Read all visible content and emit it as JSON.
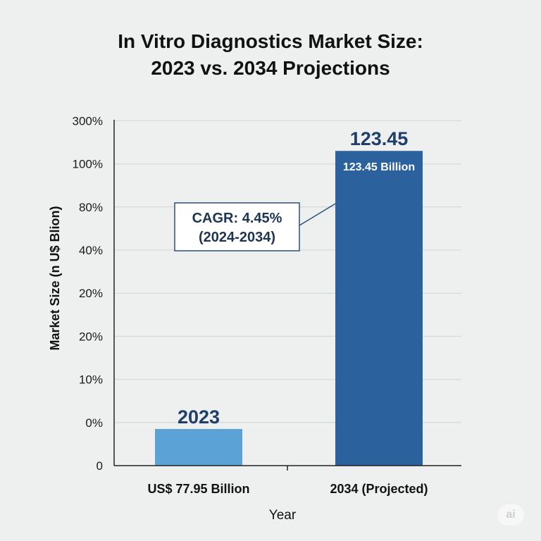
{
  "chart_data": {
    "type": "bar",
    "title_lines": [
      "In Vitro Diagnostics Market Size:",
      "2023 vs. 2034 Projections"
    ],
    "xlabel": "Year",
    "ylabel": "Market Size (n U$ Blion)",
    "y_tick_labels": [
      "0",
      "0%",
      "10%",
      "20%",
      "20%",
      "40%",
      "80%",
      "100%",
      "300%"
    ],
    "categories": [
      "US$ 77.95 Billion",
      "2034 (Projected)"
    ],
    "values": [
      0.85,
      7.3
    ],
    "bar_top_labels": [
      "2023",
      "123.45"
    ],
    "bar_inner_labels": [
      "",
      "123.45 Billion"
    ],
    "bar_colors": [
      "#5ba3d6",
      "#2b619c"
    ],
    "ylim": [
      0,
      8
    ],
    "grid": true,
    "annotation": {
      "lines": [
        "CAGR: 4.45%",
        "(2024-2034)"
      ],
      "target_bar": 1
    }
  },
  "watermark": "ai"
}
